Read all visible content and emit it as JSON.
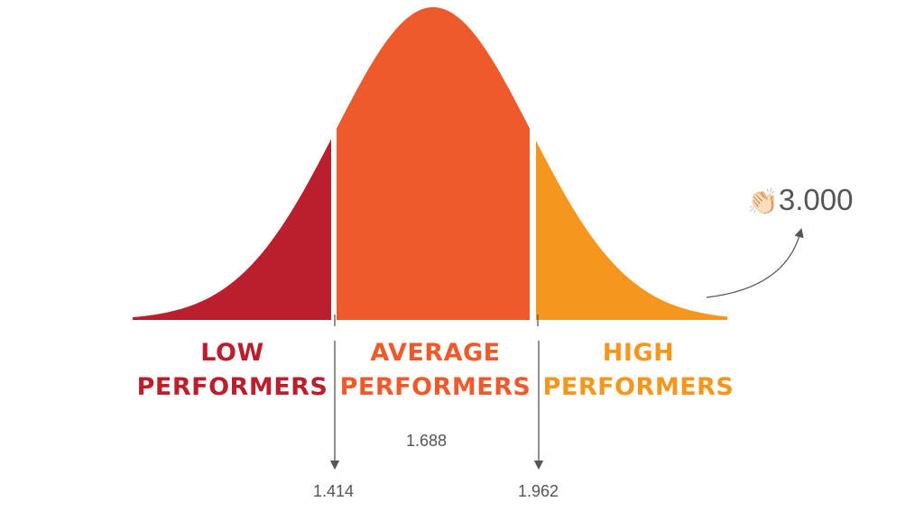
{
  "colors": {
    "low": "#bb1e2d",
    "average": "#ef5a2c",
    "high": "#f5961f",
    "text_gray": "#555555",
    "line_gray": "#555555"
  },
  "segments": [
    {
      "key": "low",
      "line1": "LOW",
      "line2": "PERFORMERS"
    },
    {
      "key": "average",
      "line1": "AVERAGE",
      "line2": "PERFORMERS"
    },
    {
      "key": "high",
      "line1": "HIGH",
      "line2": "PERFORMERS"
    }
  ],
  "values": {
    "center": "1.688",
    "left": "1.414",
    "right": "1.962"
  },
  "clap": {
    "icon": "clapping-hands-icon",
    "glyph": "👏🏻",
    "count": "3.000"
  }
}
